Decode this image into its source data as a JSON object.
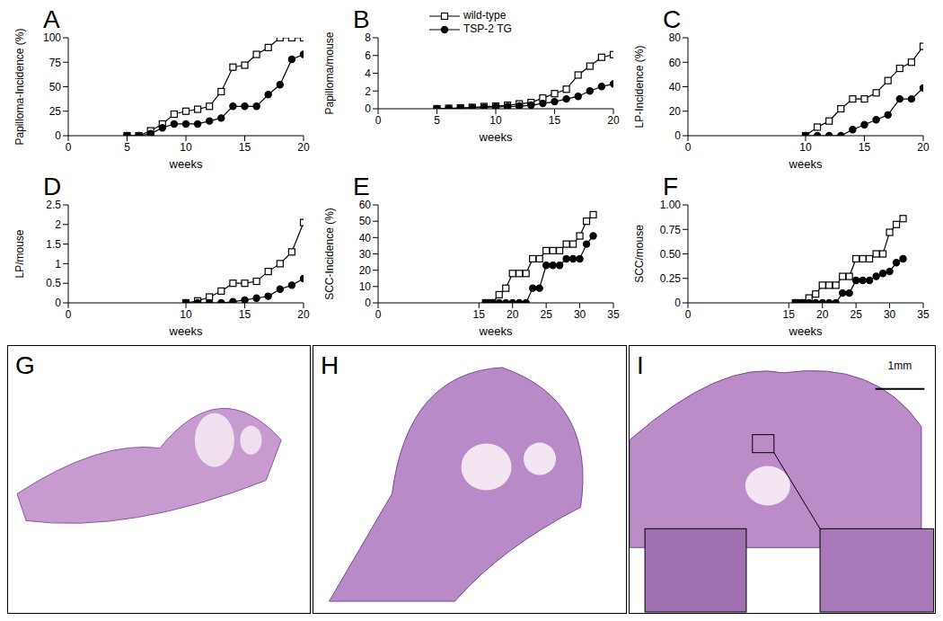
{
  "chart_data": [
    {
      "type": "line",
      "title": "A",
      "x_label": "weeks",
      "y_label": "Papilloma-Incidence (%)",
      "x": [
        5,
        6,
        7,
        8,
        9,
        10,
        11,
        12,
        13,
        14,
        15,
        16,
        17,
        18,
        19,
        20
      ],
      "xlim": [
        0,
        20
      ],
      "xticks": [
        0,
        5,
        10,
        15,
        20
      ],
      "ylim": [
        0,
        100
      ],
      "yticks": [
        0,
        25,
        50,
        75,
        100
      ],
      "series": [
        {
          "color": "#000000",
          "marker": "open_square",
          "values": [
            0,
            0,
            5,
            12,
            22,
            25,
            27,
            30,
            45,
            70,
            72,
            83,
            90,
            100,
            100,
            100
          ]
        },
        {
          "color": "#000000",
          "marker": "circle",
          "values": [
            0,
            0,
            2,
            8,
            12,
            12,
            12,
            15,
            18,
            30,
            30,
            30,
            42,
            52,
            78,
            83
          ]
        }
      ]
    },
    {
      "type": "line",
      "title": "B",
      "x_label": "weeks",
      "y_label": "Papilloma/mouse",
      "legend": "upper center",
      "x": [
        5,
        6,
        7,
        8,
        9,
        10,
        11,
        12,
        13,
        14,
        15,
        16,
        17,
        18,
        19,
        20
      ],
      "xlim": [
        0,
        20
      ],
      "xticks": [
        0,
        5,
        10,
        15,
        20
      ],
      "ylim": [
        0,
        8
      ],
      "yticks": [
        0,
        2,
        4,
        6,
        8
      ],
      "series": [
        {
          "name": "wild-type",
          "color": "#000000",
          "marker": "open_square",
          "values": [
            0,
            0.05,
            0.1,
            0.15,
            0.25,
            0.3,
            0.4,
            0.55,
            0.7,
            1.2,
            1.7,
            2.2,
            3.8,
            4.8,
            5.8,
            6.1
          ]
        },
        {
          "name": "TSP-2 TG",
          "color": "#000000",
          "marker": "circle",
          "values": [
            0,
            0,
            0.05,
            0.1,
            0.15,
            0.2,
            0.25,
            0.3,
            0.4,
            0.6,
            0.8,
            1.1,
            1.4,
            2.0,
            2.5,
            2.8
          ]
        }
      ]
    },
    {
      "type": "line",
      "title": "C",
      "x_label": "weeks",
      "y_label": "LP-Incidence (%)",
      "x": [
        10,
        11,
        12,
        13,
        14,
        15,
        16,
        17,
        18,
        19,
        20
      ],
      "xlim": [
        0,
        20
      ],
      "xticks": [
        0,
        10,
        15,
        20
      ],
      "ylim": [
        0,
        80
      ],
      "yticks": [
        0,
        20,
        40,
        60,
        80
      ],
      "series": [
        {
          "color": "#000000",
          "marker": "open_square",
          "values": [
            0,
            7,
            12,
            22,
            30,
            30,
            35,
            45,
            55,
            60,
            73
          ]
        },
        {
          "color": "#000000",
          "marker": "circle",
          "values": [
            0,
            0,
            0,
            0,
            5,
            9,
            13,
            17,
            30,
            30,
            39
          ]
        }
      ]
    },
    {
      "type": "line",
      "title": "D",
      "x_label": "weeks",
      "y_label": "LP/mouse",
      "x": [
        10,
        11,
        12,
        13,
        14,
        15,
        16,
        17,
        18,
        19,
        20
      ],
      "xlim": [
        0,
        20
      ],
      "xticks": [
        0,
        10,
        15,
        20
      ],
      "ylim": [
        0,
        2.5
      ],
      "yticks": [
        0,
        0.5,
        1,
        1.5,
        2,
        2.5
      ],
      "series": [
        {
          "color": "#000000",
          "marker": "open_square",
          "values": [
            0,
            0.05,
            0.15,
            0.3,
            0.5,
            0.5,
            0.55,
            0.8,
            1.0,
            1.3,
            2.05
          ]
        },
        {
          "color": "#000000",
          "marker": "circle",
          "values": [
            0,
            0,
            0,
            0,
            0.03,
            0.07,
            0.12,
            0.17,
            0.35,
            0.45,
            0.62
          ]
        }
      ]
    },
    {
      "type": "line",
      "title": "E",
      "x_label": "weeks",
      "y_label": "SCC-Incidence (%)",
      "x": [
        16,
        17,
        18,
        19,
        20,
        21,
        22,
        23,
        24,
        25,
        26,
        27,
        28,
        29,
        30,
        31,
        32
      ],
      "xlim": [
        0,
        35
      ],
      "xticks": [
        0,
        15,
        20,
        25,
        30,
        35
      ],
      "ylim": [
        0,
        60
      ],
      "yticks": [
        0,
        10,
        20,
        30,
        40,
        50,
        60
      ],
      "series": [
        {
          "color": "#000000",
          "marker": "open_square",
          "values": [
            0,
            0,
            5,
            9,
            18,
            18,
            18,
            27,
            27,
            32,
            32,
            32,
            36,
            36,
            41,
            50,
            54
          ]
        },
        {
          "color": "#000000",
          "marker": "circle",
          "values": [
            0,
            0,
            0,
            0,
            0,
            0,
            0,
            9,
            9,
            23,
            23,
            23,
            27,
            27,
            27,
            36,
            41
          ]
        }
      ]
    },
    {
      "type": "line",
      "title": "F",
      "x_label": "weeks",
      "y_label": "SCC/mouse",
      "x": [
        16,
        17,
        18,
        19,
        20,
        21,
        22,
        23,
        24,
        25,
        26,
        27,
        28,
        29,
        30,
        31,
        32
      ],
      "xlim": [
        0,
        35
      ],
      "xticks": [
        0,
        15,
        20,
        25,
        30,
        35
      ],
      "ylim": [
        0,
        1
      ],
      "yticks": [
        0,
        0.25,
        {
          "value": 0.5,
          "label": "0.50"
        },
        0.75,
        {
          "value": 1,
          "label": "1.00"
        }
      ],
      "series": [
        {
          "color": "#000000",
          "marker": "open_square",
          "values": [
            0,
            0,
            0.05,
            0.09,
            0.18,
            0.18,
            0.18,
            0.27,
            0.27,
            0.45,
            0.45,
            0.45,
            0.5,
            0.5,
            0.72,
            0.8,
            0.86
          ]
        },
        {
          "color": "#000000",
          "marker": "circle",
          "values": [
            0,
            0,
            0,
            0,
            0,
            0,
            0,
            0.1,
            0.1,
            0.23,
            0.23,
            0.23,
            0.27,
            0.3,
            0.32,
            0.41,
            0.45
          ]
        }
      ]
    }
  ],
  "image_panels": [
    {
      "label": "G"
    },
    {
      "label": "H"
    },
    {
      "label": "I",
      "scale_bar": "1mm"
    }
  ]
}
